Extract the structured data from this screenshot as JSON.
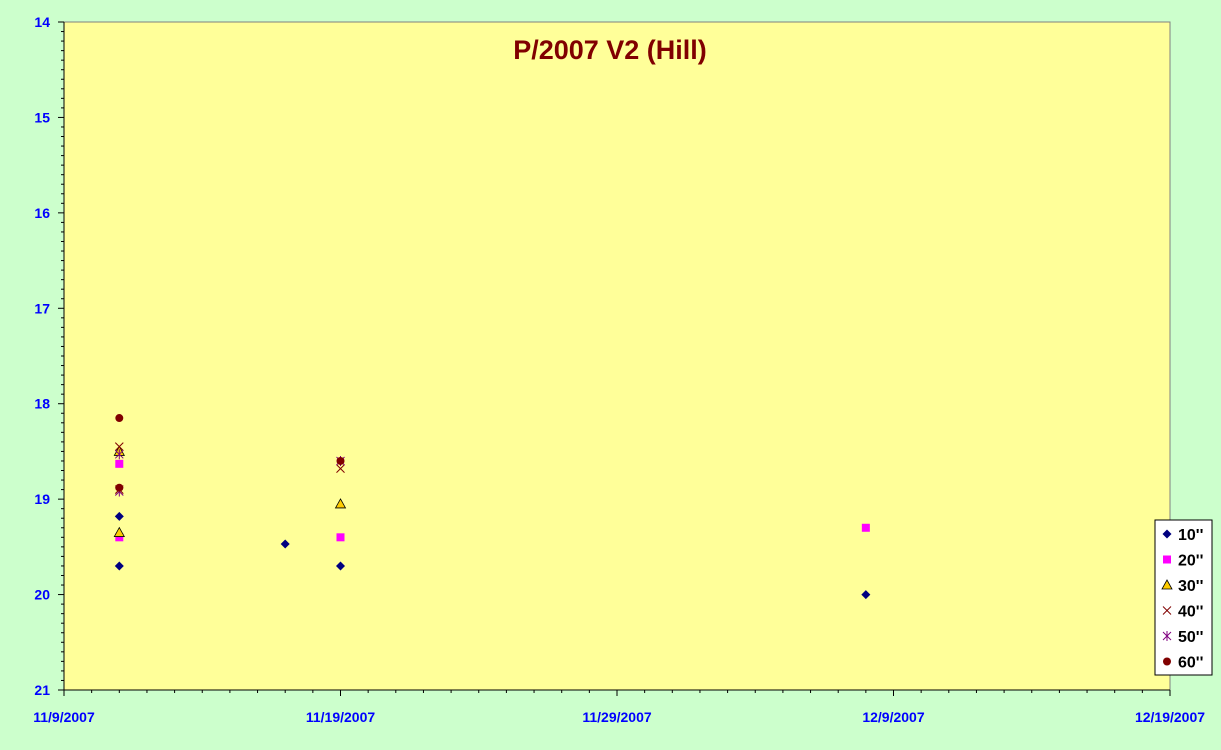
{
  "chart_data": {
    "type": "scatter",
    "title": "P/2007 V2 (Hill)",
    "xlabel": "",
    "ylabel": "",
    "x_axis": {
      "type": "date",
      "min": "2007-11-09",
      "max": "2007-12-19",
      "major_ticks": [
        "2007-11-09",
        "2007-11-19",
        "2007-11-29",
        "2007-12-09",
        "2007-12-19"
      ],
      "tick_labels": [
        "11/9/2007",
        "11/19/2007",
        "11/29/2007",
        "12/9/2007",
        "12/19/2007"
      ]
    },
    "y_axis": {
      "reversed": true,
      "min": 14,
      "max": 21,
      "ticks": [
        14,
        15,
        16,
        17,
        18,
        19,
        20,
        21
      ],
      "tick_labels": [
        "14",
        "15",
        "16",
        "17",
        "18",
        "19",
        "20",
        "21"
      ]
    },
    "grid": false,
    "legend_position": "right",
    "series": [
      {
        "name": "10''",
        "marker": "diamond",
        "color": "#000080",
        "points": [
          [
            "2007-11-11",
            19.18
          ],
          [
            "2007-11-11",
            19.7
          ],
          [
            "2007-11-17",
            19.47
          ],
          [
            "2007-11-19",
            19.7
          ],
          [
            "2007-12-08",
            20.0
          ]
        ]
      },
      {
        "name": "20''",
        "marker": "square",
        "color": "#ff00ff",
        "points": [
          [
            "2007-11-11",
            18.63
          ],
          [
            "2007-11-11",
            19.4
          ],
          [
            "2007-11-19",
            19.4
          ],
          [
            "2007-12-08",
            19.3
          ]
        ]
      },
      {
        "name": "30''",
        "marker": "triangle",
        "color": "#ffcc00",
        "points": [
          [
            "2007-11-11",
            18.5
          ],
          [
            "2007-11-11",
            19.35
          ],
          [
            "2007-11-19",
            19.05
          ]
        ]
      },
      {
        "name": "40''",
        "marker": "x",
        "color": "#800000",
        "points": [
          [
            "2007-11-11",
            18.45
          ],
          [
            "2007-11-11",
            18.9
          ],
          [
            "2007-11-19",
            18.68
          ]
        ]
      },
      {
        "name": "50''",
        "marker": "star",
        "color": "#800080",
        "points": [
          [
            "2007-11-11",
            18.53
          ],
          [
            "2007-11-11",
            18.92
          ],
          [
            "2007-11-19",
            18.6
          ]
        ]
      },
      {
        "name": "60''",
        "marker": "circle",
        "color": "#800000",
        "points": [
          [
            "2007-11-11",
            18.15
          ],
          [
            "2007-11-11",
            18.88
          ],
          [
            "2007-11-19",
            18.6
          ]
        ]
      }
    ]
  },
  "colors": {
    "page_background": "#ccffcc",
    "plot_background": "#ffff99",
    "title": "#800000",
    "tick_labels": "#0000ff"
  }
}
